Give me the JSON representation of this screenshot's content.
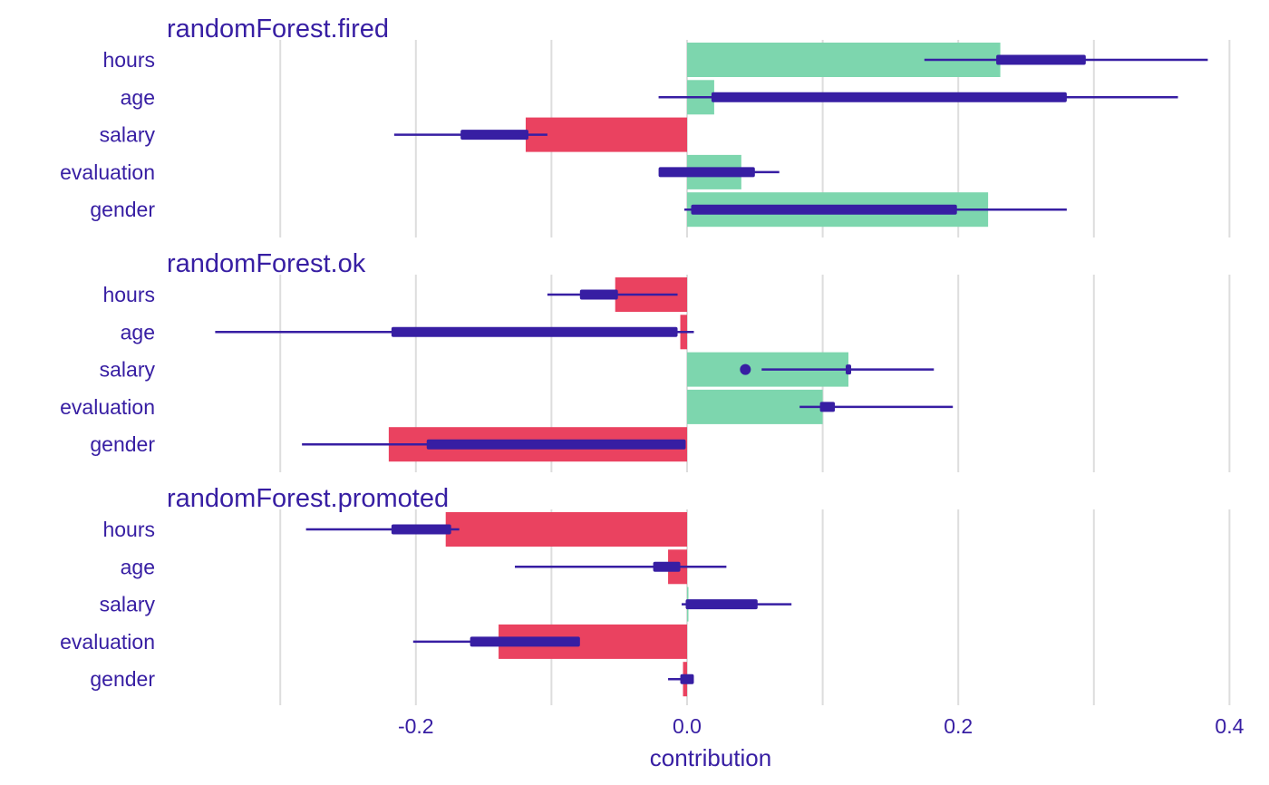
{
  "chart_data": {
    "type": "bar",
    "xlabel": "contribution",
    "xlim": [
      -0.3,
      0.4
    ],
    "x_ticks": [
      -0.2,
      0.0,
      0.2,
      0.4
    ],
    "x_tick_labels": [
      "-0.2",
      "0.0",
      "0.2",
      "0.4"
    ],
    "grid": true,
    "colors": {
      "positive": "#7dd6ae",
      "negative": "#ea4260",
      "interval": "#371ea3",
      "grid": "#dddddd",
      "text": "#371ea3"
    },
    "variables": [
      "hours",
      "age",
      "salary",
      "evaluation",
      "gender"
    ],
    "panels": [
      {
        "title": "randomForest.fired",
        "bars": [
          {
            "variable": "hours",
            "value": 0.231,
            "min": 0.175,
            "q1": 0.23,
            "q3": 0.292,
            "max": 0.384
          },
          {
            "variable": "age",
            "value": 0.02,
            "min": -0.021,
            "q1": 0.02,
            "q3": 0.278,
            "max": 0.362
          },
          {
            "variable": "salary",
            "value": -0.119,
            "min": -0.216,
            "q1": -0.165,
            "q3": -0.119,
            "max": -0.103
          },
          {
            "variable": "evaluation",
            "value": 0.04,
            "min": -0.019,
            "q1": -0.019,
            "q3": 0.048,
            "max": 0.068
          },
          {
            "variable": "gender",
            "value": 0.222,
            "min": -0.002,
            "q1": 0.005,
            "q3": 0.197,
            "max": 0.28
          }
        ]
      },
      {
        "title": "randomForest.ok",
        "bars": [
          {
            "variable": "hours",
            "value": -0.053,
            "min": -0.103,
            "q1": -0.077,
            "q3": -0.053,
            "max": -0.007
          },
          {
            "variable": "age",
            "value": -0.005,
            "min": -0.348,
            "q1": -0.216,
            "q3": -0.009,
            "max": 0.005
          },
          {
            "variable": "salary",
            "value": 0.119,
            "min": 0.055,
            "q1": 0.119,
            "q3": 0.119,
            "max": 0.182,
            "point": 0.043
          },
          {
            "variable": "evaluation",
            "value": 0.1,
            "min": 0.083,
            "q1": 0.1,
            "q3": 0.107,
            "max": 0.196
          },
          {
            "variable": "gender",
            "value": -0.22,
            "min": -0.284,
            "q1": -0.19,
            "q3": -0.003,
            "max": -0.003
          }
        ]
      },
      {
        "title": "randomForest.promoted",
        "bars": [
          {
            "variable": "hours",
            "value": -0.178,
            "min": -0.281,
            "q1": -0.216,
            "q3": -0.176,
            "max": -0.168
          },
          {
            "variable": "age",
            "value": -0.014,
            "min": -0.127,
            "q1": -0.023,
            "q3": -0.007,
            "max": 0.029
          },
          {
            "variable": "salary",
            "value": 0.001,
            "min": -0.004,
            "q1": 0.001,
            "q3": 0.05,
            "max": 0.077
          },
          {
            "variable": "evaluation",
            "value": -0.139,
            "min": -0.202,
            "q1": -0.158,
            "q3": -0.081,
            "max": -0.081
          },
          {
            "variable": "gender",
            "value": -0.003,
            "min": -0.014,
            "q1": -0.003,
            "q3": 0.003,
            "max": 0.004
          }
        ]
      }
    ]
  }
}
